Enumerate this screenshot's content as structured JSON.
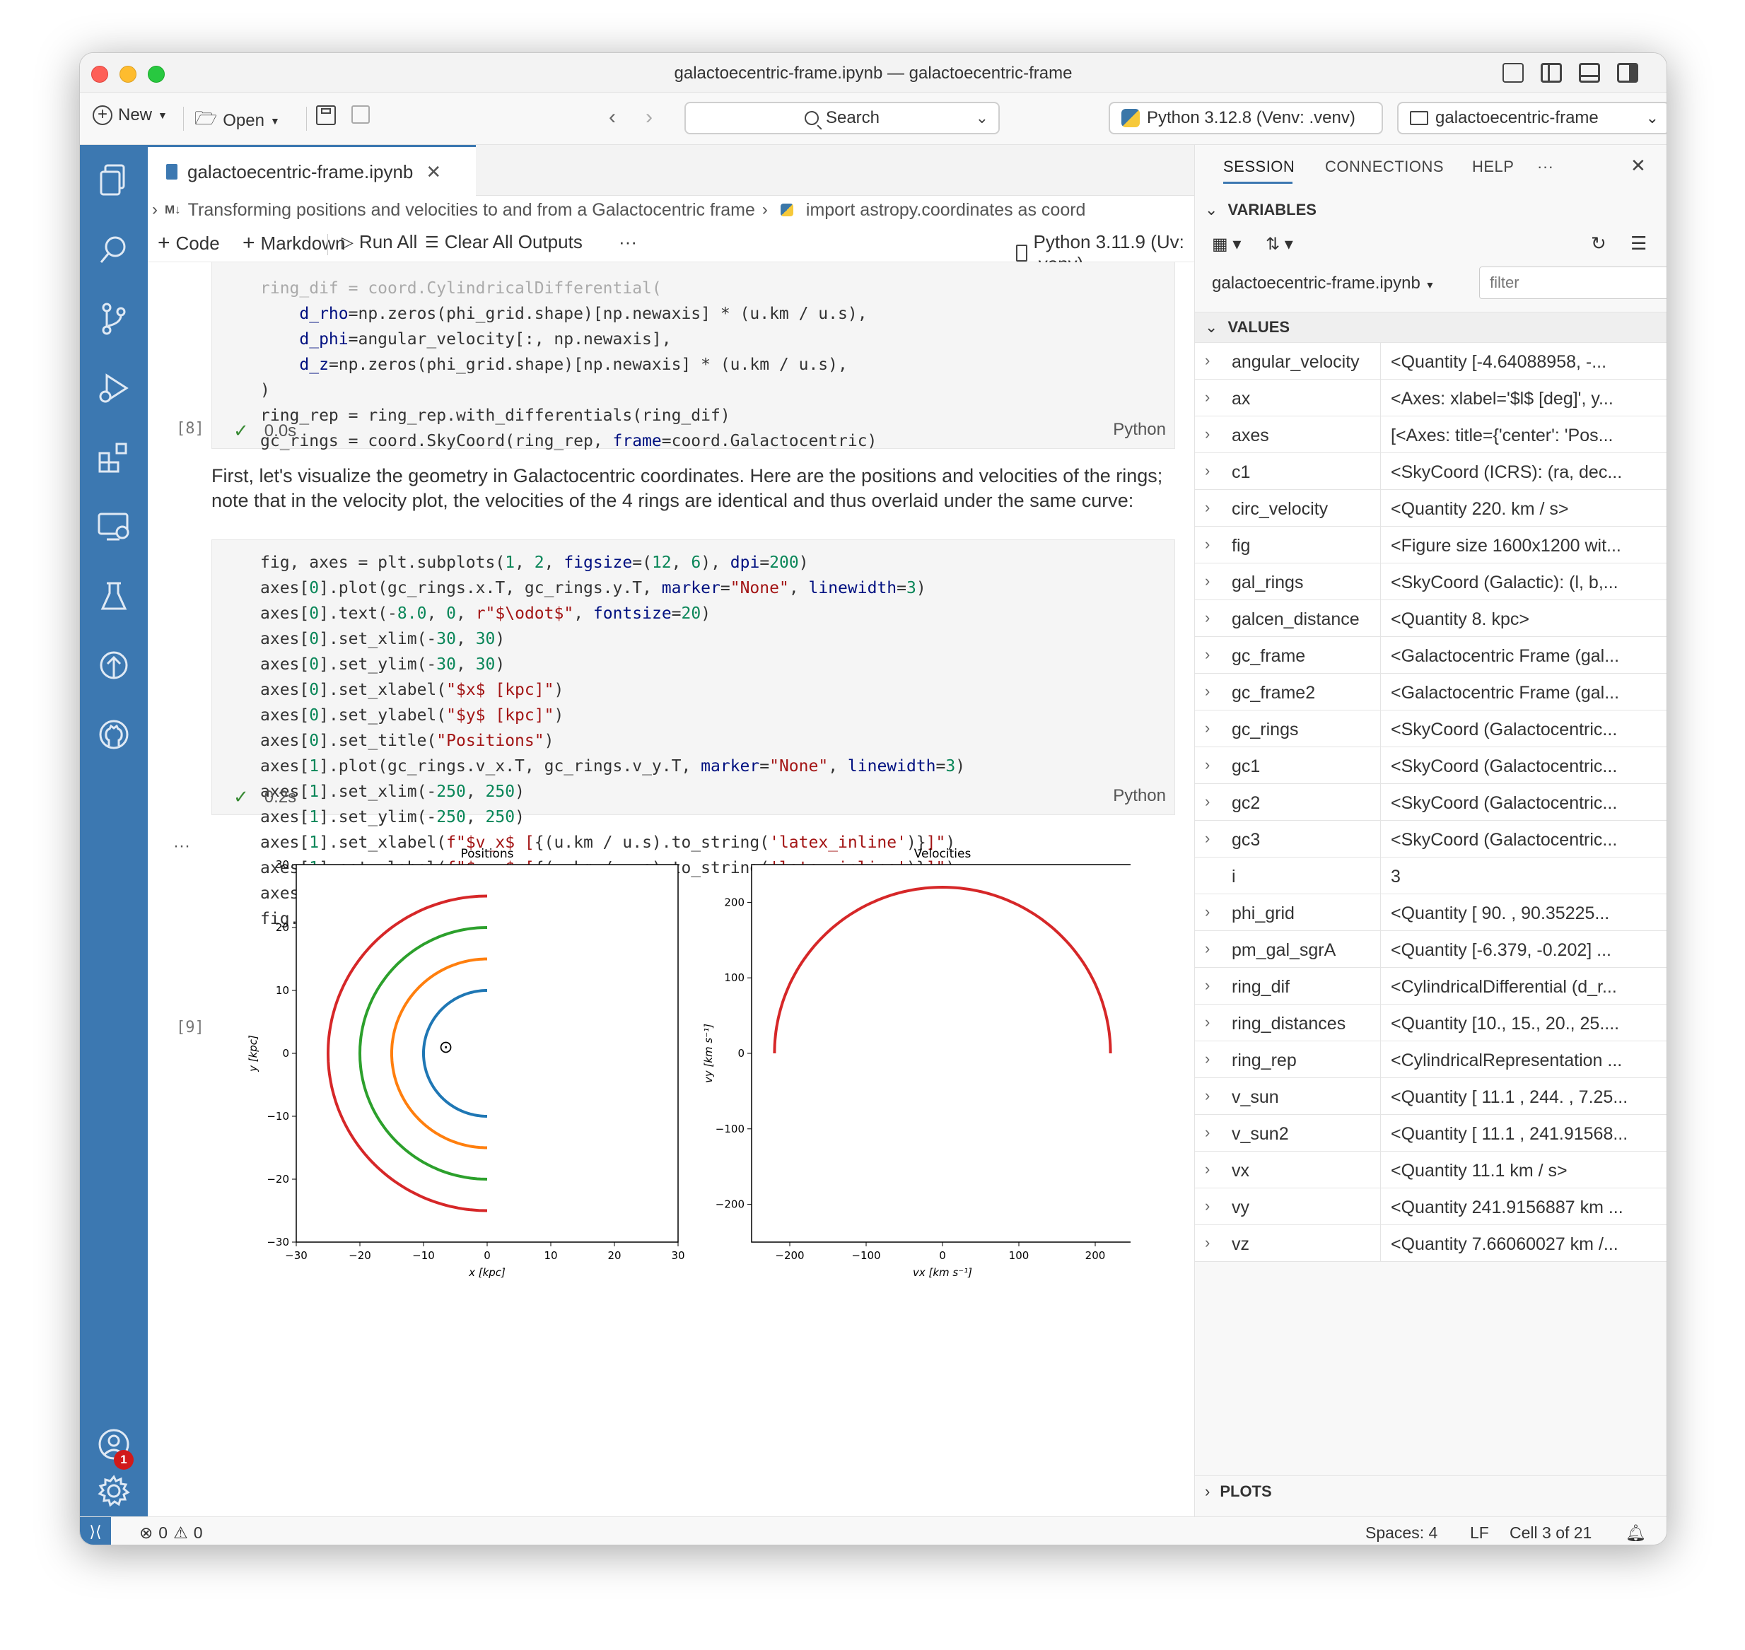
{
  "window": {
    "title": "galactoecentric-frame.ipynb — galactoecentric-frame"
  },
  "toolbar": {
    "new_label": "New",
    "open_label": "Open",
    "search_label": "Search",
    "interpreter_label": "Python 3.12.8 (Venv: .venv)",
    "folder_label": "galactoecentric-frame"
  },
  "editor": {
    "tab_label": "galactoecentric-frame.ipynb",
    "breadcrumb": {
      "md_badge": "M↓",
      "section": "Transforming positions and velocities to and from a Galactocentric frame",
      "cell": "import astropy.coordinates as coord"
    },
    "nb_toolbar": {
      "code_label": "Code",
      "markdown_label": "Markdown",
      "run_all_label": "Run All",
      "clear_outputs_label": "Clear All Outputs",
      "more_label": "···",
      "kernel_label": "Python 3.11.9 (Uv: .venv)"
    },
    "cell8": {
      "count": "[8]",
      "time": "0.0s",
      "lang": "Python"
    },
    "markdown_text": "First, let's visualize the geometry in Galactocentric coordinates. Here are the positions and velocities of the rings; note that in the velocity plot, the velocities of the 4 rings are identical and thus overlaid under the same curve:",
    "cell9": {
      "count": "[9]",
      "time": "0.2s",
      "lang": "Python"
    },
    "output_more": "···"
  },
  "chart_data": [
    {
      "type": "line",
      "title": "Positions",
      "xlabel": "x [kpc]",
      "ylabel": "y [kpc]",
      "xlim": [
        -30,
        30
      ],
      "ylim": [
        -30,
        30
      ],
      "xticks": [
        "−30",
        "−20",
        "−10",
        "0",
        "10",
        "20",
        "30"
      ],
      "yticks": [
        "30",
        "20",
        "10",
        "0",
        "−10",
        "−20",
        "−30"
      ],
      "series": [
        {
          "radius": 10,
          "color": "#1f77b4"
        },
        {
          "radius": 15,
          "color": "#ff7f0e"
        },
        {
          "radius": 20,
          "color": "#2ca02c"
        },
        {
          "radius": 25,
          "color": "#d62728"
        }
      ],
      "annotation": {
        "symbol": "⊙",
        "x": -6.5,
        "y": 1.0
      }
    },
    {
      "type": "line",
      "title": "Velocities",
      "xlabel": "vx [km s⁻¹]",
      "ylabel": "vy [km s⁻¹]",
      "xlim": [
        -250,
        250
      ],
      "ylim": [
        -250,
        250
      ],
      "xticks": [
        "−200",
        "−100",
        "0",
        "100",
        "200"
      ],
      "yticks": [
        "200",
        "100",
        "0",
        "−100",
        "−200"
      ],
      "series": [
        {
          "radius": 220,
          "color": "#d62728"
        }
      ]
    }
  ],
  "panel": {
    "tabs": {
      "session": "SESSION",
      "connections": "CONNECTIONS",
      "help": "HELP",
      "more": "···"
    },
    "variables_label": "VARIABLES",
    "notebook_select": "galactoecentric-frame.ipynb",
    "filter_placeholder": "filter",
    "values_label": "VALUES",
    "plots_label": "PLOTS",
    "variables": [
      {
        "name": "angular_velocity",
        "value": "<Quantity [-4.64088958, -...",
        "expandable": true
      },
      {
        "name": "ax",
        "value": "<Axes: xlabel='$l$ [deg]', y...",
        "expandable": true
      },
      {
        "name": "axes",
        "value": "[<Axes: title={'center': 'Pos...",
        "expandable": true
      },
      {
        "name": "c1",
        "value": "<SkyCoord (ICRS): (ra, dec...",
        "expandable": true
      },
      {
        "name": "circ_velocity",
        "value": "<Quantity 220. km / s>",
        "expandable": true
      },
      {
        "name": "fig",
        "value": "<Figure size 1600x1200 wit...",
        "expandable": true
      },
      {
        "name": "gal_rings",
        "value": "<SkyCoord (Galactic): (l, b,...",
        "expandable": true
      },
      {
        "name": "galcen_distance",
        "value": "<Quantity 8. kpc>",
        "expandable": true
      },
      {
        "name": "gc_frame",
        "value": "<Galactocentric Frame (gal...",
        "expandable": true
      },
      {
        "name": "gc_frame2",
        "value": "<Galactocentric Frame (gal...",
        "expandable": true
      },
      {
        "name": "gc_rings",
        "value": "<SkyCoord (Galactocentric...",
        "expandable": true
      },
      {
        "name": "gc1",
        "value": "<SkyCoord (Galactocentric...",
        "expandable": true
      },
      {
        "name": "gc2",
        "value": "<SkyCoord (Galactocentric...",
        "expandable": true
      },
      {
        "name": "gc3",
        "value": "<SkyCoord (Galactocentric...",
        "expandable": true
      },
      {
        "name": "i",
        "value": "3",
        "expandable": false
      },
      {
        "name": "phi_grid",
        "value": "<Quantity [ 90. , 90.35225...",
        "expandable": true
      },
      {
        "name": "pm_gal_sgrA",
        "value": "<Quantity [-6.379, -0.202] ...",
        "expandable": true
      },
      {
        "name": "ring_dif",
        "value": "<CylindricalDifferential (d_r...",
        "expandable": true
      },
      {
        "name": "ring_distances",
        "value": "<Quantity [10., 15., 20., 25....",
        "expandable": true
      },
      {
        "name": "ring_rep",
        "value": "<CylindricalRepresentation ...",
        "expandable": true
      },
      {
        "name": "v_sun",
        "value": "<Quantity [ 11.1 , 244. , 7.25...",
        "expandable": true
      },
      {
        "name": "v_sun2",
        "value": "<Quantity [ 11.1 , 241.91568...",
        "expandable": true
      },
      {
        "name": "vx",
        "value": "<Quantity 11.1 km / s>",
        "expandable": true
      },
      {
        "name": "vy",
        "value": "<Quantity 241.9156887 km ...",
        "expandable": true
      },
      {
        "name": "vz",
        "value": "<Quantity 7.66060027 km /...",
        "expandable": true
      }
    ]
  },
  "statusbar": {
    "errors": "0",
    "warnings": "0",
    "spaces": "Spaces: 4",
    "eol": "LF",
    "cell_pos": "Cell 3 of 21"
  },
  "badges": {
    "accounts_count": "1"
  }
}
